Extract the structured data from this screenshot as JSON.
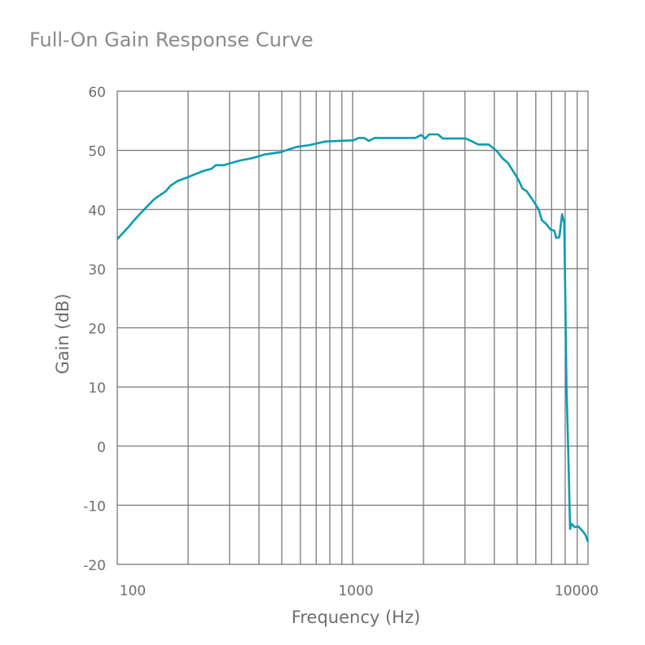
{
  "chart_data": {
    "type": "line",
    "title": "Full-On Gain Response Curve",
    "xlabel": "Frequency (Hz)",
    "ylabel": "Gain (dB)",
    "x_scale": "log",
    "xlim": [
      100,
      10000
    ],
    "ylim": [
      -20,
      60
    ],
    "grid": true,
    "x_tick_labels": [
      "100",
      "1000",
      "10000"
    ],
    "y_ticks": [
      60,
      50,
      40,
      30,
      20,
      10,
      0,
      -10,
      -20
    ],
    "y_tick_labels": [
      "60",
      "50",
      "40",
      "30",
      "20",
      "10",
      "0",
      "-10",
      "-20"
    ],
    "line_color": "#0a9db2",
    "series": [
      {
        "x": [
          100,
          112,
          118,
          133,
          144,
          161,
          168,
          180,
          198,
          215,
          232,
          252,
          262,
          284,
          307,
          333,
          375,
          422,
          496,
          537,
          581,
          656,
          768,
          1007,
          1059,
          1120,
          1174,
          1239,
          1849,
          1955,
          2033,
          2113,
          2305,
          2416,
          3022,
          3222,
          3413,
          3784,
          4097,
          4344,
          4565,
          4805,
          5051,
          5275,
          5487,
          5708,
          5938,
          6176,
          6363,
          6665,
          6925,
          7195,
          7324,
          7557,
          7759,
          7923,
          7980,
          8100,
          8250,
          8395,
          8500,
          8760,
          9100,
          9500,
          9750,
          10000
        ],
        "y": [
          35.0,
          37.1,
          38.2,
          40.4,
          41.8,
          43.1,
          44.0,
          44.8,
          45.4,
          46.0,
          46.5,
          46.9,
          47.5,
          47.5,
          47.9,
          48.3,
          48.7,
          49.3,
          49.7,
          50.2,
          50.6,
          50.9,
          51.5,
          51.7,
          52.1,
          52.1,
          51.6,
          52.1,
          52.1,
          52.6,
          52.0,
          52.7,
          52.7,
          52.0,
          52.0,
          51.5,
          51.0,
          51.0,
          49.9,
          48.6,
          47.9,
          46.5,
          45.1,
          43.5,
          43.1,
          42.1,
          41.1,
          40.0,
          38.2,
          37.5,
          36.6,
          36.4,
          35.2,
          35.3,
          39.2,
          37.8,
          29.6,
          10.0,
          -1.7,
          -14.0,
          -13.1,
          -13.7,
          -13.6,
          -14.4,
          -15.0,
          -16.2
        ]
      }
    ],
    "vertical_gridlines": [
      200,
      300,
      400,
      500,
      600,
      700,
      800,
      900,
      1000,
      2000,
      3000,
      4000,
      5000,
      6000,
      7000,
      8000,
      9000
    ]
  }
}
